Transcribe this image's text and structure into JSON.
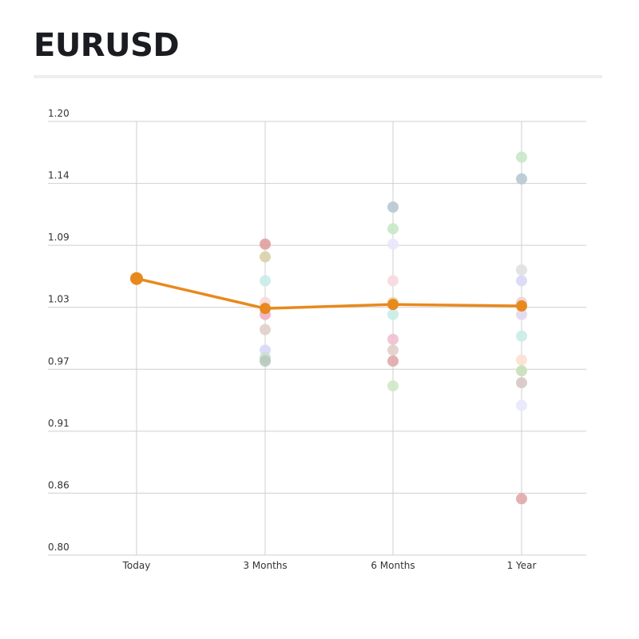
{
  "page": {
    "title": "EURUSD"
  },
  "chart_data": {
    "type": "line",
    "title": "EURUSD",
    "xlabel": "",
    "ylabel": "",
    "categories": [
      "Today",
      "3 Months",
      "6 Months",
      "1 Year"
    ],
    "y_ticks": [
      "1.20",
      "1.14",
      "1.09",
      "1.03",
      "0.97",
      "0.91",
      "0.86",
      "0.80"
    ],
    "ylim": [
      0.8,
      1.2
    ],
    "grid": true,
    "legend": "none",
    "series": [
      {
        "values": [
          1.0551,
          1.0275,
          1.0312,
          1.0298
        ],
        "color": "#e8891d"
      }
    ],
    "forecasts": [
      {
        "category": "3 Months",
        "values": [
          {
            "y": 1.0868,
            "color": "#e0a0a0"
          },
          {
            "y": 1.0751,
            "color": "#d8d0a8"
          },
          {
            "y": 1.053,
            "color": "#c8ece8"
          },
          {
            "y": 1.033,
            "color": "#f8d8d8"
          },
          {
            "y": 1.022,
            "color": "#f0b0c0"
          },
          {
            "y": 1.008,
            "color": "#e0d0c8"
          },
          {
            "y": 0.989,
            "color": "#d8d8f8"
          },
          {
            "y": 0.982,
            "color": "#c8e0c8"
          },
          {
            "y": 0.979,
            "color": "#b8c8c0"
          }
        ]
      },
      {
        "category": "6 Months",
        "values": [
          {
            "y": 1.121,
            "color": "#b8c8d0"
          },
          {
            "y": 1.101,
            "color": "#c8e8c8"
          },
          {
            "y": 1.0868,
            "color": "#e8e8fc"
          },
          {
            "y": 1.053,
            "color": "#f8d8e0"
          },
          {
            "y": 1.033,
            "color": "#e8d8a8"
          },
          {
            "y": 1.022,
            "color": "#c8ece8"
          },
          {
            "y": 0.999,
            "color": "#f0c0d0"
          },
          {
            "y": 0.989,
            "color": "#e0d0c8"
          },
          {
            "y": 0.979,
            "color": "#e0a8a8"
          },
          {
            "y": 0.956,
            "color": "#d0e8c8"
          }
        ]
      },
      {
        "category": "1 Year",
        "values": [
          {
            "y": 1.167,
            "color": "#c8e8c8"
          },
          {
            "y": 1.147,
            "color": "#b8c8d0"
          },
          {
            "y": 1.063,
            "color": "#e0e0e0"
          },
          {
            "y": 1.053,
            "color": "#d8d8f8"
          },
          {
            "y": 1.033,
            "color": "#f0d0d0"
          },
          {
            "y": 1.022,
            "color": "#e0d8f0"
          },
          {
            "y": 1.002,
            "color": "#c8ece8"
          },
          {
            "y": 0.98,
            "color": "#fce0d0"
          },
          {
            "y": 0.97,
            "color": "#c8e0b8"
          },
          {
            "y": 0.959,
            "color": "#d8c8c8"
          },
          {
            "y": 0.938,
            "color": "#e8e8fc"
          },
          {
            "y": 0.852,
            "color": "#e0a8a8"
          }
        ]
      }
    ]
  }
}
